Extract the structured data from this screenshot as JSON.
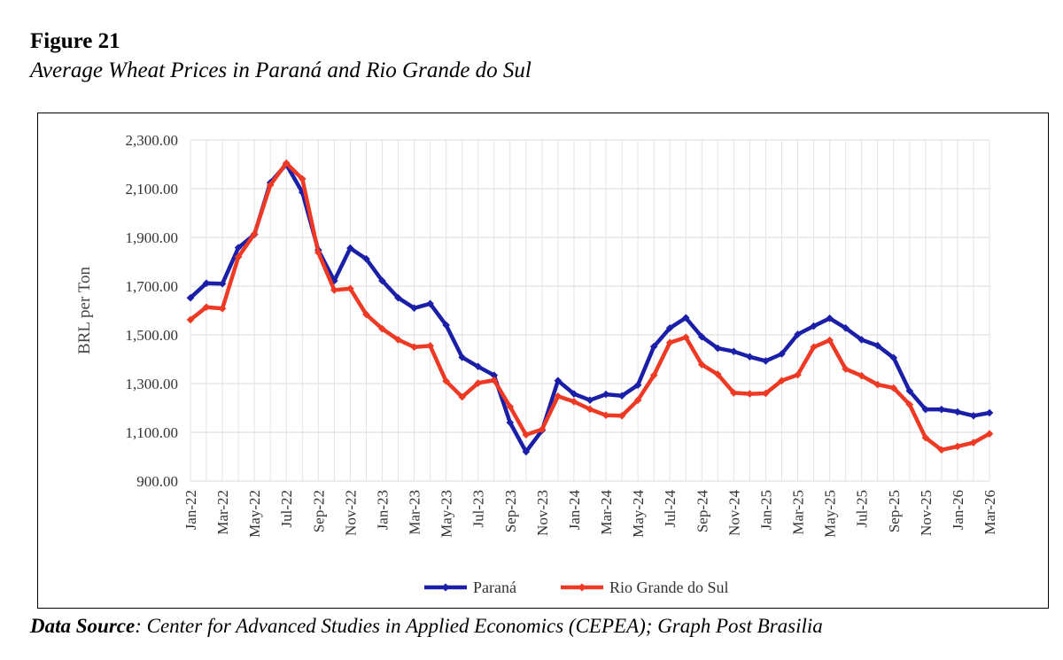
{
  "figure": {
    "label": "Figure 21",
    "title": "Average Wheat Prices in Paraná and Rio Grande do Sul"
  },
  "source": {
    "label": "Data Source",
    "text": ": Center for Advanced Studies in Applied Economics (CEPEA); Graph Post Brasilia"
  },
  "chart_data": {
    "type": "line",
    "ylabel": "BRL per Ton",
    "xlabel": "",
    "ylim": [
      900,
      2300
    ],
    "y_ticks": [
      "900.00",
      "1,100.00",
      "1,300.00",
      "1,500.00",
      "1,700.00",
      "1,900.00",
      "2,100.00",
      "2,300.00"
    ],
    "y_tick_values": [
      900,
      1100,
      1300,
      1500,
      1700,
      1900,
      2100,
      2300
    ],
    "grid": true,
    "legend_position": "bottom",
    "x": [
      "Jan-22",
      "Feb-22",
      "Mar-22",
      "Apr-22",
      "May-22",
      "Jun-22",
      "Jul-22",
      "Aug-22",
      "Sep-22",
      "Oct-22",
      "Nov-22",
      "Dec-22",
      "Jan-23",
      "Feb-23",
      "Mar-23",
      "Apr-23",
      "May-23",
      "Jun-23",
      "Jul-23",
      "Aug-23",
      "Sep-23",
      "Oct-23",
      "Nov-23",
      "Dec-23",
      "Jan-24",
      "Feb-24",
      "Mar-24",
      "Apr-24",
      "May-24",
      "Jun-24",
      "Jul-24",
      "Aug-24",
      "Sep-24",
      "Oct-24",
      "Nov-24",
      "Dec-24",
      "Jan-25",
      "Feb-25",
      "Mar-25",
      "Apr-25",
      "May-25",
      "Jun-25",
      "Jul-25",
      "Aug-25",
      "Sep-25",
      "Oct-25",
      "Nov-25",
      "Dec-25",
      "Jan-26",
      "Feb-26",
      "Mar-26"
    ],
    "x_tick_labels": [
      "Jan-22",
      "Mar-22",
      "May-22",
      "Jul-22",
      "Sep-22",
      "Nov-22",
      "Jan-23",
      "Mar-23",
      "May-23",
      "Jul-23",
      "Sep-23",
      "Nov-23",
      "Jan-24",
      "Mar-24",
      "May-24",
      "Jul-24",
      "Sep-24",
      "Nov-24",
      "Jan-25",
      "Mar-25",
      "May-25",
      "Jul-25",
      "Sep-25",
      "Nov-25",
      "Jan-26",
      "Mar-26"
    ],
    "series": [
      {
        "name": "Paraná",
        "color": "#1b1fa8",
        "values": [
          1652,
          1712,
          1710,
          1858,
          1912,
          2125,
          2200,
          2085,
          1848,
          1722,
          1856,
          1812,
          1722,
          1652,
          1610,
          1628,
          1540,
          1408,
          1370,
          1334,
          1140,
          1020,
          1108,
          1312,
          1258,
          1232,
          1256,
          1250,
          1294,
          1452,
          1528,
          1570,
          1492,
          1445,
          1432,
          1410,
          1393,
          1422,
          1502,
          1536,
          1568,
          1528,
          1480,
          1456,
          1406,
          1270,
          1194,
          1194,
          1184,
          1168,
          1180
        ]
      },
      {
        "name": "Rio Grande do Sul",
        "color": "#ee3a24",
        "values": [
          1562,
          1614,
          1608,
          1820,
          1914,
          2115,
          2205,
          2140,
          1838,
          1684,
          1690,
          1584,
          1525,
          1480,
          1450,
          1455,
          1310,
          1245,
          1302,
          1314,
          1205,
          1090,
          1112,
          1248,
          1226,
          1195,
          1170,
          1168,
          1232,
          1334,
          1468,
          1490,
          1378,
          1338,
          1262,
          1258,
          1260,
          1312,
          1336,
          1450,
          1478,
          1360,
          1332,
          1296,
          1282,
          1214,
          1078,
          1028,
          1042,
          1058,
          1094
        ]
      }
    ]
  }
}
